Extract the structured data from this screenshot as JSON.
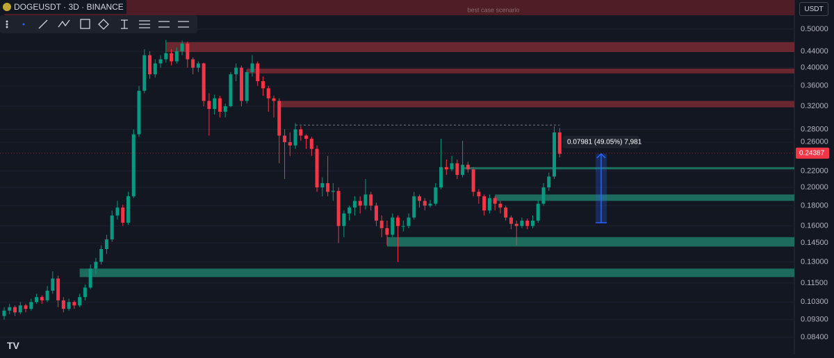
{
  "chart_data": {
    "type": "candlestick",
    "title": "DOGEUSDT · 3D · BINANCE",
    "currency": "USDT",
    "log_scale": true,
    "up_color": "#089981",
    "down_color": "#f23645",
    "grid": true,
    "ylim": [
      0.076,
      0.592
    ],
    "yticks": [
      {
        "value": 0.5,
        "label": "0.50000"
      },
      {
        "value": 0.44,
        "label": "0.44000"
      },
      {
        "value": 0.4,
        "label": "0.40000"
      },
      {
        "value": 0.36,
        "label": "0.36000"
      },
      {
        "value": 0.32,
        "label": "0.32000"
      },
      {
        "value": 0.28,
        "label": "0.28000"
      },
      {
        "value": 0.26,
        "label": "0.26000"
      },
      {
        "value": 0.22,
        "label": "0.22000"
      },
      {
        "value": 0.2,
        "label": "0.20000"
      },
      {
        "value": 0.18,
        "label": "0.18000"
      },
      {
        "value": 0.16,
        "label": "0.16000"
      },
      {
        "value": 0.145,
        "label": "0.14500"
      },
      {
        "value": 0.13,
        "label": "0.13000"
      },
      {
        "value": 0.115,
        "label": "0.11500"
      },
      {
        "value": 0.103,
        "label": "0.10300"
      },
      {
        "value": 0.093,
        "label": "0.09300"
      },
      {
        "value": 0.084,
        "label": "0.08400"
      }
    ],
    "last_price": 0.24387,
    "ohlc": [
      [
        0.095,
        0.1,
        0.093,
        0.098
      ],
      [
        0.098,
        0.102,
        0.096,
        0.1
      ],
      [
        0.1,
        0.101,
        0.095,
        0.097
      ],
      [
        0.097,
        0.103,
        0.096,
        0.101
      ],
      [
        0.101,
        0.102,
        0.097,
        0.099
      ],
      [
        0.099,
        0.105,
        0.098,
        0.103
      ],
      [
        0.103,
        0.108,
        0.102,
        0.106
      ],
      [
        0.106,
        0.107,
        0.102,
        0.104
      ],
      [
        0.104,
        0.113,
        0.103,
        0.11
      ],
      [
        0.11,
        0.123,
        0.108,
        0.118
      ],
      [
        0.118,
        0.12,
        0.1,
        0.104
      ],
      [
        0.104,
        0.106,
        0.097,
        0.099
      ],
      [
        0.099,
        0.105,
        0.098,
        0.103
      ],
      [
        0.103,
        0.104,
        0.099,
        0.101
      ],
      [
        0.101,
        0.108,
        0.1,
        0.106
      ],
      [
        0.106,
        0.114,
        0.104,
        0.112
      ],
      [
        0.112,
        0.128,
        0.111,
        0.125
      ],
      [
        0.125,
        0.133,
        0.121,
        0.13
      ],
      [
        0.13,
        0.143,
        0.128,
        0.14
      ],
      [
        0.14,
        0.152,
        0.136,
        0.148
      ],
      [
        0.148,
        0.175,
        0.146,
        0.17
      ],
      [
        0.17,
        0.185,
        0.166,
        0.178
      ],
      [
        0.178,
        0.181,
        0.16,
        0.163
      ],
      [
        0.163,
        0.195,
        0.161,
        0.19
      ],
      [
        0.19,
        0.28,
        0.188,
        0.272
      ],
      [
        0.272,
        0.36,
        0.268,
        0.35
      ],
      [
        0.35,
        0.445,
        0.345,
        0.43
      ],
      [
        0.43,
        0.44,
        0.375,
        0.385
      ],
      [
        0.385,
        0.42,
        0.378,
        0.41
      ],
      [
        0.41,
        0.43,
        0.4,
        0.42
      ],
      [
        0.42,
        0.47,
        0.412,
        0.435
      ],
      [
        0.435,
        0.445,
        0.405,
        0.415
      ],
      [
        0.415,
        0.45,
        0.41,
        0.44
      ],
      [
        0.44,
        0.468,
        0.43,
        0.46
      ],
      [
        0.46,
        0.465,
        0.4,
        0.42
      ],
      [
        0.42,
        0.425,
        0.385,
        0.4
      ],
      [
        0.4,
        0.415,
        0.39,
        0.41
      ],
      [
        0.41,
        0.412,
        0.32,
        0.33
      ],
      [
        0.33,
        0.345,
        0.27,
        0.315
      ],
      [
        0.315,
        0.342,
        0.305,
        0.335
      ],
      [
        0.335,
        0.34,
        0.3,
        0.31
      ],
      [
        0.31,
        0.325,
        0.3,
        0.32
      ],
      [
        0.32,
        0.39,
        0.318,
        0.385
      ],
      [
        0.385,
        0.41,
        0.37,
        0.4
      ],
      [
        0.4,
        0.405,
        0.32,
        0.33
      ],
      [
        0.33,
        0.395,
        0.325,
        0.39
      ],
      [
        0.39,
        0.43,
        0.38,
        0.41
      ],
      [
        0.41,
        0.415,
        0.36,
        0.37
      ],
      [
        0.37,
        0.38,
        0.34,
        0.355
      ],
      [
        0.355,
        0.36,
        0.31,
        0.335
      ],
      [
        0.335,
        0.34,
        0.3,
        0.33
      ],
      [
        0.33,
        0.335,
        0.23,
        0.27
      ],
      [
        0.27,
        0.28,
        0.21,
        0.26
      ],
      [
        0.26,
        0.275,
        0.24,
        0.255
      ],
      [
        0.255,
        0.29,
        0.25,
        0.28
      ],
      [
        0.28,
        0.285,
        0.262,
        0.27
      ],
      [
        0.27,
        0.272,
        0.25,
        0.265
      ],
      [
        0.265,
        0.268,
        0.24,
        0.25
      ],
      [
        0.25,
        0.255,
        0.195,
        0.2
      ],
      [
        0.2,
        0.212,
        0.19,
        0.205
      ],
      [
        0.205,
        0.24,
        0.19,
        0.195
      ],
      [
        0.195,
        0.205,
        0.185,
        0.196
      ],
      [
        0.196,
        0.2,
        0.145,
        0.16
      ],
      [
        0.16,
        0.175,
        0.15,
        0.172
      ],
      [
        0.172,
        0.18,
        0.165,
        0.178
      ],
      [
        0.178,
        0.19,
        0.17,
        0.185
      ],
      [
        0.185,
        0.19,
        0.172,
        0.18
      ],
      [
        0.18,
        0.21,
        0.176,
        0.192
      ],
      [
        0.192,
        0.195,
        0.175,
        0.18
      ],
      [
        0.18,
        0.183,
        0.16,
        0.165
      ],
      [
        0.165,
        0.17,
        0.15,
        0.158
      ],
      [
        0.158,
        0.165,
        0.143,
        0.152
      ],
      [
        0.152,
        0.172,
        0.15,
        0.168
      ],
      [
        0.168,
        0.17,
        0.13,
        0.16
      ],
      [
        0.16,
        0.165,
        0.155,
        0.16
      ],
      [
        0.16,
        0.172,
        0.158,
        0.168
      ],
      [
        0.168,
        0.195,
        0.166,
        0.19
      ],
      [
        0.19,
        0.192,
        0.178,
        0.185
      ],
      [
        0.185,
        0.188,
        0.175,
        0.18
      ],
      [
        0.18,
        0.186,
        0.178,
        0.182
      ],
      [
        0.182,
        0.205,
        0.18,
        0.2
      ],
      [
        0.2,
        0.265,
        0.198,
        0.225
      ],
      [
        0.225,
        0.235,
        0.215,
        0.222
      ],
      [
        0.222,
        0.24,
        0.22,
        0.23
      ],
      [
        0.23,
        0.235,
        0.21,
        0.215
      ],
      [
        0.215,
        0.262,
        0.212,
        0.228
      ],
      [
        0.228,
        0.232,
        0.218,
        0.222
      ],
      [
        0.222,
        0.225,
        0.19,
        0.195
      ],
      [
        0.195,
        0.198,
        0.182,
        0.19
      ],
      [
        0.19,
        0.192,
        0.17,
        0.175
      ],
      [
        0.175,
        0.192,
        0.172,
        0.188
      ],
      [
        0.188,
        0.19,
        0.175,
        0.182
      ],
      [
        0.182,
        0.185,
        0.172,
        0.178
      ],
      [
        0.178,
        0.18,
        0.165,
        0.168
      ],
      [
        0.168,
        0.17,
        0.157,
        0.162
      ],
      [
        0.162,
        0.165,
        0.143,
        0.16
      ],
      [
        0.16,
        0.168,
        0.158,
        0.165
      ],
      [
        0.165,
        0.167,
        0.157,
        0.16
      ],
      [
        0.16,
        0.17,
        0.158,
        0.165
      ],
      [
        0.165,
        0.186,
        0.163,
        0.182
      ],
      [
        0.182,
        0.205,
        0.18,
        0.2
      ],
      [
        0.2,
        0.218,
        0.196,
        0.213
      ],
      [
        0.213,
        0.285,
        0.21,
        0.275
      ],
      [
        0.275,
        0.282,
        0.238,
        0.243
      ]
    ],
    "zones": [
      {
        "top": 0.592,
        "bottom": 0.542,
        "from": 0,
        "color": "#5a1e27",
        "label": "best case scenario"
      },
      {
        "top": 0.464,
        "bottom": 0.438,
        "from": 30,
        "color": "#7a2a33"
      },
      {
        "top": 0.398,
        "bottom": 0.387,
        "from": 45,
        "color": "#7a2a33"
      },
      {
        "top": 0.33,
        "bottom": 0.318,
        "from": 51,
        "color": "#7a2a33"
      },
      {
        "top": 0.225,
        "bottom": 0.222,
        "from": 85,
        "color": "#1f7a66"
      },
      {
        "top": 0.192,
        "bottom": 0.185,
        "from": 91,
        "color": "#1f7a66"
      },
      {
        "top": 0.15,
        "bottom": 0.142,
        "from": 71,
        "color": "#1f7a66"
      },
      {
        "top": 0.125,
        "bottom": 0.119,
        "from": 14,
        "color": "#1f7a66"
      }
    ],
    "high_line": {
      "value": 0.287,
      "from": 54,
      "to": 103
    },
    "measure": {
      "from": 0.163,
      "to": 0.243,
      "label": "0.07981 (49.05%) 7,981"
    }
  }
}
